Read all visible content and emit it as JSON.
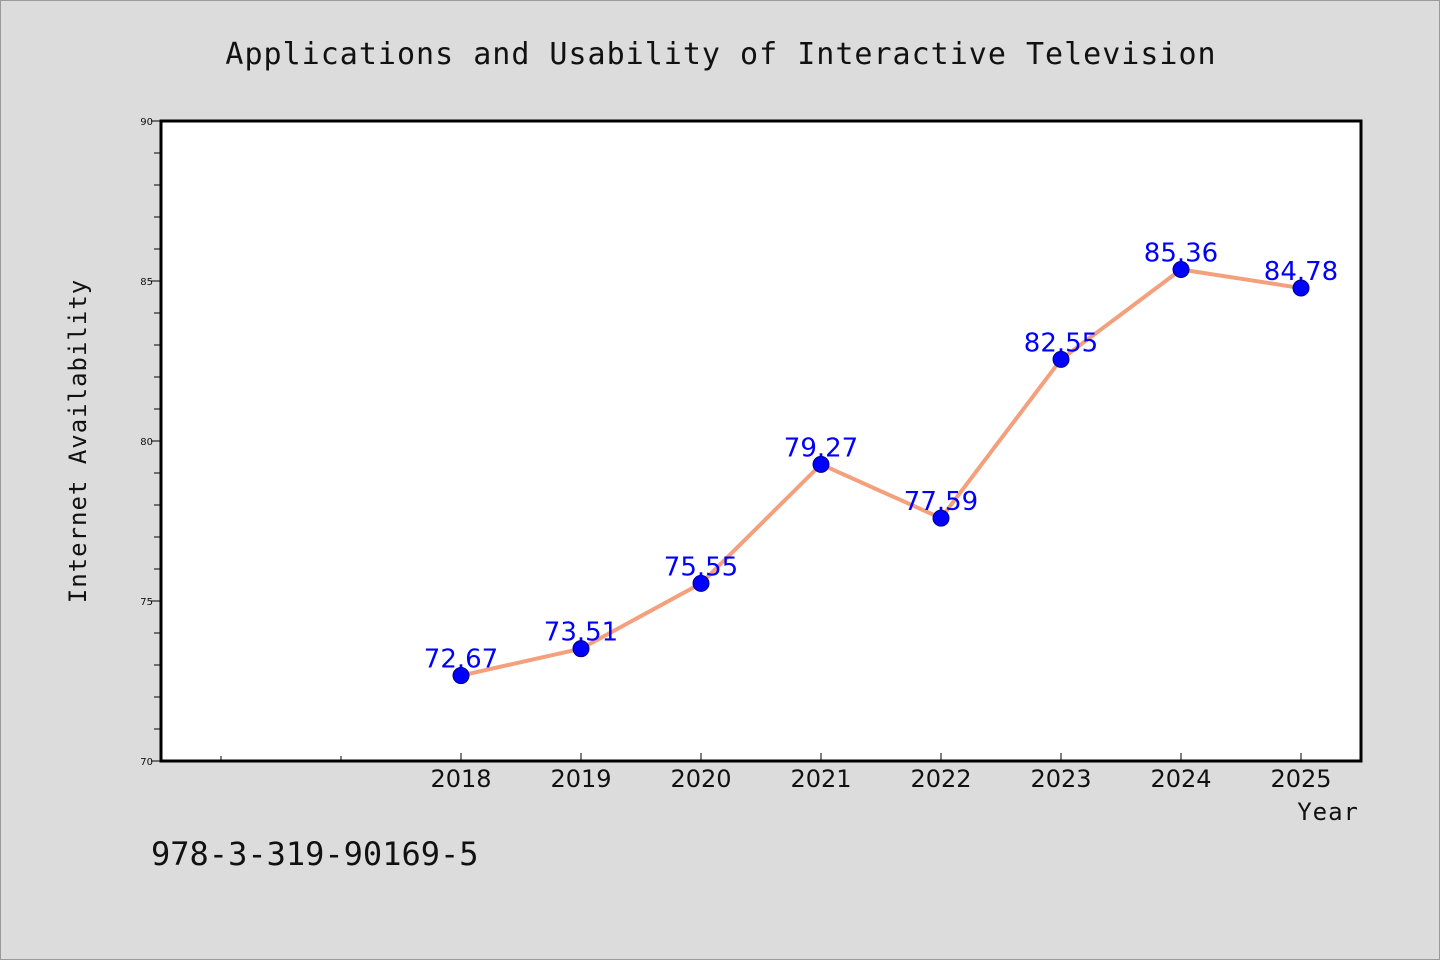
{
  "chart_data": {
    "type": "line",
    "title": "Applications and Usability of Interactive Television",
    "xlabel": "Year",
    "ylabel": "Internet Availability",
    "categories": [
      "2018",
      "2019",
      "2020",
      "2021",
      "2022",
      "2023",
      "2024",
      "2025"
    ],
    "series": [
      {
        "values": [
          72.67,
          73.51,
          75.55,
          79.27,
          77.59,
          82.55,
          85.36,
          84.78
        ],
        "labels": [
          "72.67",
          "73.51",
          "75.55",
          "79.27",
          "77.59",
          "82.55",
          "85.36",
          "84.78"
        ],
        "line_color": "#f4a07c",
        "marker_color": "#0000ff"
      }
    ],
    "ylim": [
      70,
      90
    ],
    "yticks": [
      "70",
      "75",
      "80",
      "85",
      "90"
    ],
    "grid": false,
    "legend": "none"
  },
  "footer": {
    "text": "978-3-319-90169-5"
  },
  "colors": {
    "background": "#dcdcdc",
    "plot_background": "#ffffff",
    "data_label": "#0000ff"
  }
}
